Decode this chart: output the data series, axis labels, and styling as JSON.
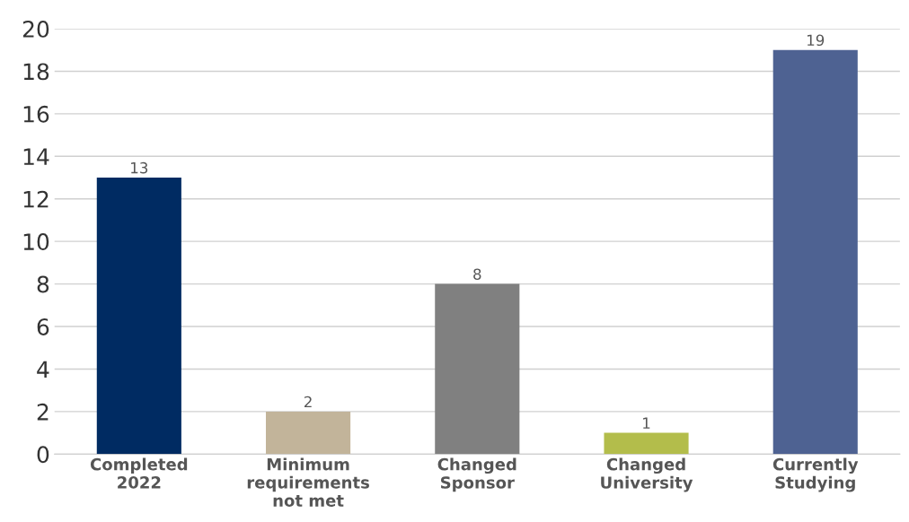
{
  "chart_data": {
    "type": "bar",
    "categories": [
      "Completed\n2022",
      "Minimum\nrequirements\nnot met",
      "Changed\nSponsor",
      "Changed\nUniversity",
      "Currently\nStudying"
    ],
    "values": [
      13,
      2,
      8,
      1,
      19
    ],
    "colors": [
      "#002b62",
      "#c2b49a",
      "#808080",
      "#b3bd4b",
      "#4e6292"
    ],
    "ylim": [
      0,
      20
    ],
    "yticks": [
      0,
      2,
      4,
      6,
      8,
      10,
      12,
      14,
      16,
      18,
      20
    ],
    "grid": "y",
    "data_labels": true
  }
}
